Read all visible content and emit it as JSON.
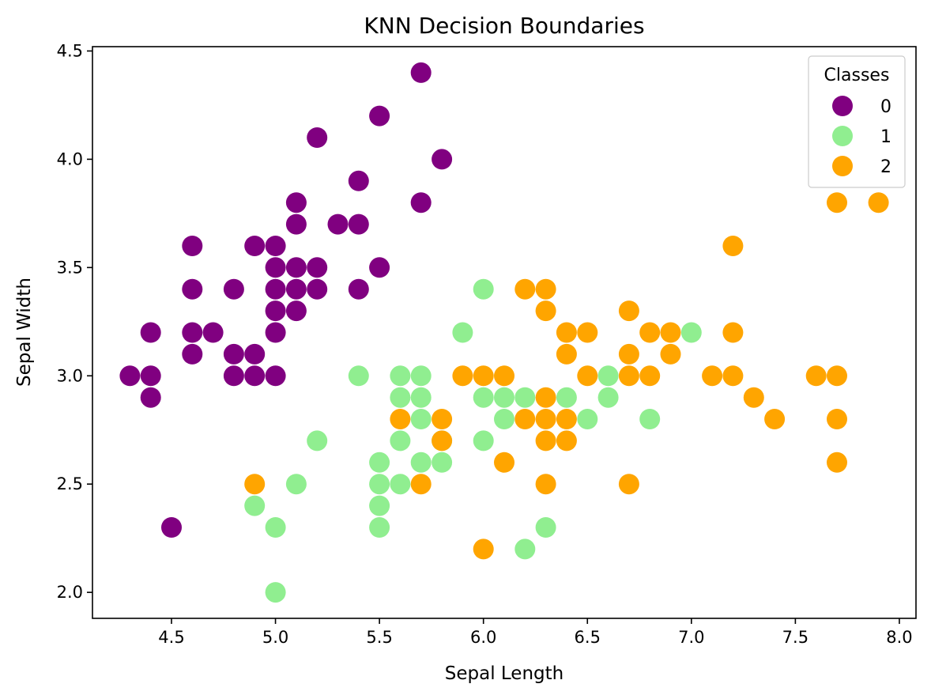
{
  "chart_data": {
    "type": "scatter",
    "title": "KNN Decision Boundaries",
    "xlabel": "Sepal Length",
    "ylabel": "Sepal Width",
    "xlim": [
      4.12,
      8.08
    ],
    "ylim": [
      1.88,
      4.52
    ],
    "xticks": [
      4.5,
      5.0,
      5.5,
      6.0,
      6.5,
      7.0,
      7.5,
      8.0
    ],
    "xtick_labels": [
      "4.5",
      "5.0",
      "5.5",
      "6.0",
      "6.5",
      "7.0",
      "7.5",
      "8.0"
    ],
    "yticks": [
      2.0,
      2.5,
      3.0,
      3.5,
      4.0,
      4.5
    ],
    "ytick_labels": [
      "2.0",
      "2.5",
      "3.0",
      "3.5",
      "4.0",
      "4.5"
    ],
    "grid": false,
    "legend": {
      "title": "Classes",
      "placement": "top-right"
    },
    "series": [
      {
        "name": "0",
        "color": "#800080",
        "points": [
          [
            5.7,
            4.4
          ],
          [
            5.5,
            4.2
          ],
          [
            5.2,
            4.1
          ],
          [
            5.8,
            4.0
          ],
          [
            5.4,
            3.9
          ],
          [
            5.1,
            3.8
          ],
          [
            5.7,
            3.8
          ],
          [
            5.1,
            3.7
          ],
          [
            5.3,
            3.7
          ],
          [
            5.4,
            3.7
          ],
          [
            4.6,
            3.6
          ],
          [
            4.9,
            3.6
          ],
          [
            5.0,
            3.6
          ],
          [
            5.0,
            3.5
          ],
          [
            5.1,
            3.5
          ],
          [
            5.2,
            3.5
          ],
          [
            5.5,
            3.5
          ],
          [
            4.6,
            3.4
          ],
          [
            4.8,
            3.4
          ],
          [
            5.0,
            3.4
          ],
          [
            5.1,
            3.4
          ],
          [
            5.2,
            3.4
          ],
          [
            5.4,
            3.4
          ],
          [
            5.0,
            3.3
          ],
          [
            5.1,
            3.3
          ],
          [
            4.4,
            3.2
          ],
          [
            4.6,
            3.2
          ],
          [
            4.7,
            3.2
          ],
          [
            5.0,
            3.2
          ],
          [
            4.6,
            3.1
          ],
          [
            4.8,
            3.1
          ],
          [
            4.9,
            3.1
          ],
          [
            4.3,
            3.0
          ],
          [
            4.4,
            3.0
          ],
          [
            4.8,
            3.0
          ],
          [
            4.9,
            3.0
          ],
          [
            5.0,
            3.0
          ],
          [
            4.4,
            2.9
          ],
          [
            4.5,
            2.3
          ]
        ]
      },
      {
        "name": "1",
        "color": "#90ee90",
        "points": [
          [
            6.0,
            3.4
          ],
          [
            5.9,
            3.2
          ],
          [
            7.0,
            3.2
          ],
          [
            5.4,
            3.0
          ],
          [
            5.6,
            3.0
          ],
          [
            5.7,
            3.0
          ],
          [
            6.6,
            3.0
          ],
          [
            5.6,
            2.9
          ],
          [
            5.7,
            2.9
          ],
          [
            6.0,
            2.9
          ],
          [
            6.1,
            2.9
          ],
          [
            6.2,
            2.9
          ],
          [
            6.4,
            2.9
          ],
          [
            6.6,
            2.9
          ],
          [
            5.7,
            2.8
          ],
          [
            6.1,
            2.8
          ],
          [
            6.5,
            2.8
          ],
          [
            6.8,
            2.8
          ],
          [
            5.2,
            2.7
          ],
          [
            5.6,
            2.7
          ],
          [
            5.8,
            2.7
          ],
          [
            6.0,
            2.7
          ],
          [
            5.5,
            2.6
          ],
          [
            5.7,
            2.6
          ],
          [
            5.8,
            2.6
          ],
          [
            5.1,
            2.5
          ],
          [
            5.5,
            2.5
          ],
          [
            5.6,
            2.5
          ],
          [
            4.9,
            2.4
          ],
          [
            5.5,
            2.4
          ],
          [
            5.0,
            2.3
          ],
          [
            5.5,
            2.3
          ],
          [
            6.3,
            2.3
          ],
          [
            6.2,
            2.2
          ],
          [
            5.0,
            2.0
          ]
        ]
      },
      {
        "name": "2",
        "color": "#ffa500",
        "points": [
          [
            7.7,
            3.8
          ],
          [
            7.9,
            3.8
          ],
          [
            7.2,
            3.6
          ],
          [
            6.2,
            3.4
          ],
          [
            6.3,
            3.4
          ],
          [
            6.3,
            3.3
          ],
          [
            6.7,
            3.3
          ],
          [
            6.4,
            3.2
          ],
          [
            6.5,
            3.2
          ],
          [
            6.8,
            3.2
          ],
          [
            6.9,
            3.2
          ],
          [
            7.2,
            3.2
          ],
          [
            6.4,
            3.1
          ],
          [
            6.7,
            3.1
          ],
          [
            6.9,
            3.1
          ],
          [
            5.9,
            3.0
          ],
          [
            6.0,
            3.0
          ],
          [
            6.1,
            3.0
          ],
          [
            6.5,
            3.0
          ],
          [
            6.7,
            3.0
          ],
          [
            6.8,
            3.0
          ],
          [
            7.1,
            3.0
          ],
          [
            7.2,
            3.0
          ],
          [
            7.6,
            3.0
          ],
          [
            7.7,
            3.0
          ],
          [
            6.3,
            2.9
          ],
          [
            7.3,
            2.9
          ],
          [
            5.6,
            2.8
          ],
          [
            5.8,
            2.8
          ],
          [
            6.2,
            2.8
          ],
          [
            6.3,
            2.8
          ],
          [
            6.4,
            2.8
          ],
          [
            7.4,
            2.8
          ],
          [
            7.7,
            2.8
          ],
          [
            5.8,
            2.7
          ],
          [
            6.3,
            2.7
          ],
          [
            6.4,
            2.7
          ],
          [
            6.1,
            2.6
          ],
          [
            7.7,
            2.6
          ],
          [
            4.9,
            2.5
          ],
          [
            5.7,
            2.5
          ],
          [
            6.3,
            2.5
          ],
          [
            6.7,
            2.5
          ],
          [
            6.0,
            2.2
          ]
        ]
      }
    ]
  }
}
